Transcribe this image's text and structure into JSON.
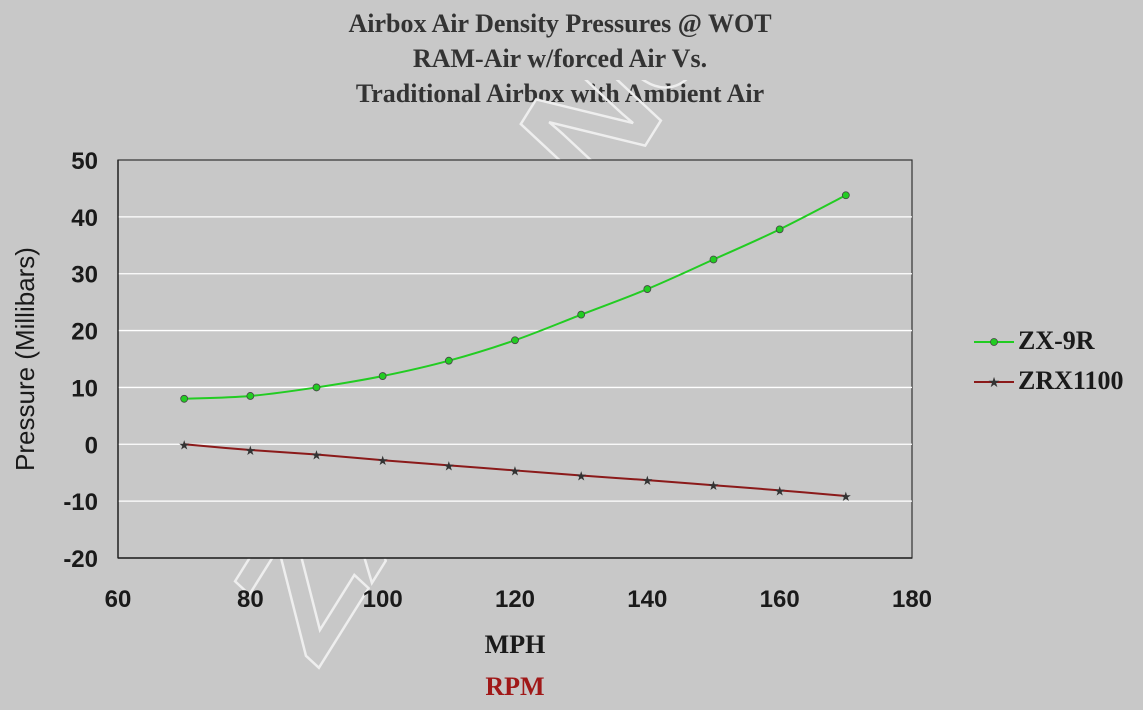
{
  "title_lines": [
    "Airbox Air Density Pressures @ WOT",
    "RAM-Air w/forced Air Vs.",
    "Traditional Airbox with Ambient Air"
  ],
  "watermark": "ZX-9R.Net",
  "units": {
    "mph": "MPH",
    "rpm": "RPM"
  },
  "colors": {
    "zx9r": "#22cc22",
    "zrx": "#8b1a1a",
    "rpm_label": "#a01818",
    "plot_bg": "#c8c8c8",
    "grid": "#ffffff"
  },
  "chart_data": {
    "type": "line",
    "title": "Airbox Air Density Pressures @ WOT RAM-Air w/forced Air Vs. Traditional Airbox with Ambient Air",
    "xlabel": "MPH",
    "ylabel": "Pressure (Millibars)",
    "xlim": [
      60,
      180
    ],
    "ylim": [
      -20,
      50
    ],
    "xticks": [
      60,
      80,
      100,
      120,
      140,
      160,
      180
    ],
    "yticks": [
      50,
      40,
      30,
      20,
      10,
      0,
      -10,
      -20
    ],
    "grid": true,
    "legend_position": "right",
    "x": [
      70,
      80,
      90,
      100,
      110,
      120,
      130,
      140,
      150,
      160,
      170
    ],
    "series": [
      {
        "name": "ZX-9R",
        "values": [
          8.0,
          8.5,
          10.0,
          12.0,
          14.7,
          18.3,
          22.8,
          27.3,
          32.5,
          37.8,
          43.8
        ]
      },
      {
        "name": "ZRX1100",
        "values": [
          0.0,
          -1.0,
          -1.8,
          -2.8,
          -3.7,
          -4.6,
          -5.5,
          -6.3,
          -7.2,
          -8.1,
          -9.1
        ]
      }
    ]
  }
}
